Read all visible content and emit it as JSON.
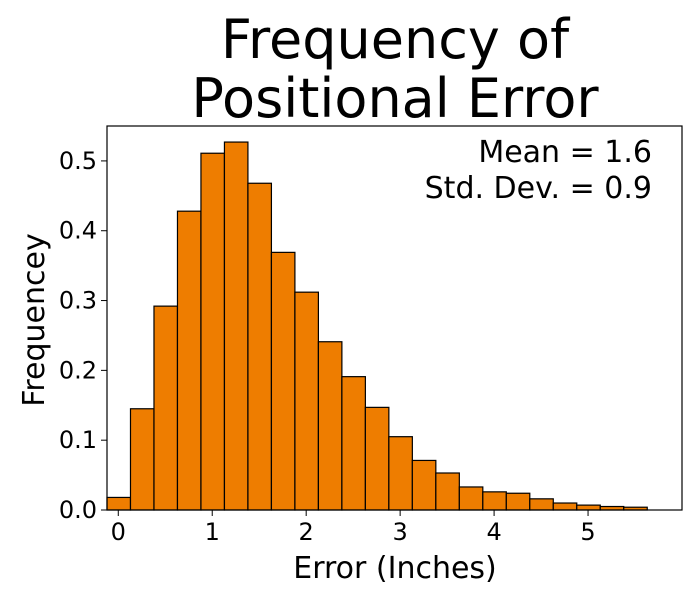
{
  "chart_data": {
    "type": "bar",
    "title": [
      "Frequency of",
      "Positional Error"
    ],
    "xlabel": "Error (Inches)",
    "ylabel": "Frequencey",
    "annotations": [
      "Mean = 1.6",
      "Std. Dev. = 0.9"
    ],
    "xlim": [
      -0.12,
      6.0
    ],
    "ylim": [
      0,
      0.55
    ],
    "xticks": [
      0,
      1,
      2,
      3,
      4,
      5
    ],
    "yticks": [
      0.0,
      0.1,
      0.2,
      0.3,
      0.4,
      0.5
    ],
    "ytick_labels": [
      "0.0",
      "0.1",
      "0.2",
      "0.3",
      "0.4",
      "0.5"
    ],
    "bin_width": 0.25,
    "bins": [
      {
        "x0": -0.12,
        "x1": 0.13,
        "value": 0.018
      },
      {
        "x0": 0.13,
        "x1": 0.38,
        "value": 0.145
      },
      {
        "x0": 0.38,
        "x1": 0.63,
        "value": 0.292
      },
      {
        "x0": 0.63,
        "x1": 0.88,
        "value": 0.428
      },
      {
        "x0": 0.88,
        "x1": 1.13,
        "value": 0.511
      },
      {
        "x0": 1.13,
        "x1": 1.38,
        "value": 0.527
      },
      {
        "x0": 1.38,
        "x1": 1.63,
        "value": 0.468
      },
      {
        "x0": 1.63,
        "x1": 1.88,
        "value": 0.369
      },
      {
        "x0": 1.88,
        "x1": 2.13,
        "value": 0.312
      },
      {
        "x0": 2.13,
        "x1": 2.38,
        "value": 0.241
      },
      {
        "x0": 2.38,
        "x1": 2.63,
        "value": 0.191
      },
      {
        "x0": 2.63,
        "x1": 2.88,
        "value": 0.147
      },
      {
        "x0": 2.88,
        "x1": 3.13,
        "value": 0.105
      },
      {
        "x0": 3.13,
        "x1": 3.38,
        "value": 0.071
      },
      {
        "x0": 3.38,
        "x1": 3.63,
        "value": 0.053
      },
      {
        "x0": 3.63,
        "x1": 3.88,
        "value": 0.033
      },
      {
        "x0": 3.88,
        "x1": 4.13,
        "value": 0.026
      },
      {
        "x0": 4.13,
        "x1": 4.38,
        "value": 0.024
      },
      {
        "x0": 4.38,
        "x1": 4.63,
        "value": 0.016
      },
      {
        "x0": 4.63,
        "x1": 4.88,
        "value": 0.01
      },
      {
        "x0": 4.88,
        "x1": 5.13,
        "value": 0.007
      },
      {
        "x0": 5.13,
        "x1": 5.38,
        "value": 0.005
      },
      {
        "x0": 5.38,
        "x1": 5.63,
        "value": 0.004
      }
    ],
    "bar_color": "#ee7d00",
    "edge_color": "#000000",
    "grid": false,
    "legend": "none"
  }
}
